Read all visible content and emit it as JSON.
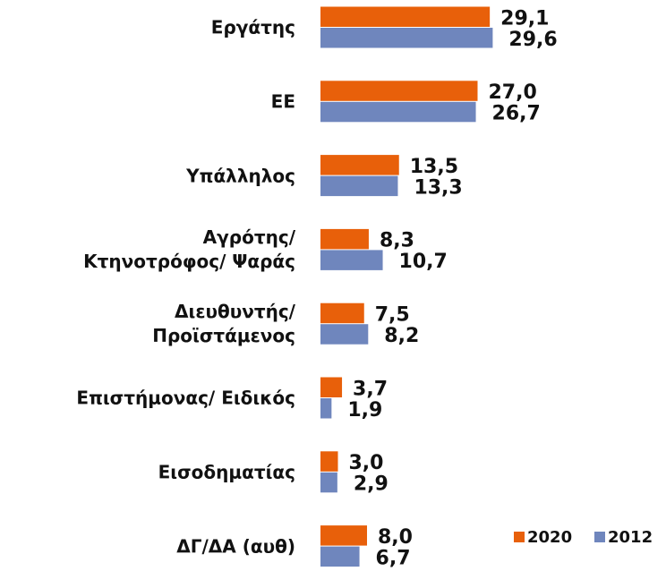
{
  "chart_data": {
    "type": "hbar",
    "categories": [
      "Εργάτης",
      "ΕΕ",
      "Υπάλληλος",
      "Αγρότης/\nΚτηνοτρόφος/ Ψαράς",
      "Διευθυντής/\nΠροϊστάμενος",
      "Επιστήμονας/ Ειδικός",
      "Εισοδηματίας",
      "ΔΓ/ΔΑ (αυθ)"
    ],
    "series": [
      {
        "name": "2020",
        "color": "#e8600a",
        "values": [
          29.1,
          27.0,
          13.5,
          8.3,
          7.5,
          3.7,
          3.0,
          8.0
        ],
        "value_labels": [
          "29,1",
          "27,0",
          "13,5",
          "8,3",
          "7,5",
          "3,7",
          "3,0",
          "8,0"
        ]
      },
      {
        "name": "2012",
        "color": "#6f86bd",
        "values": [
          29.6,
          26.7,
          13.3,
          10.7,
          8.2,
          1.9,
          2.9,
          6.7
        ],
        "value_labels": [
          "29,6",
          "26,7",
          "13,3",
          "10,7",
          "8,2",
          "1,9",
          "2,9",
          "6,7"
        ]
      }
    ],
    "xlim": [
      0,
      30
    ],
    "legend": "bottom-right"
  }
}
